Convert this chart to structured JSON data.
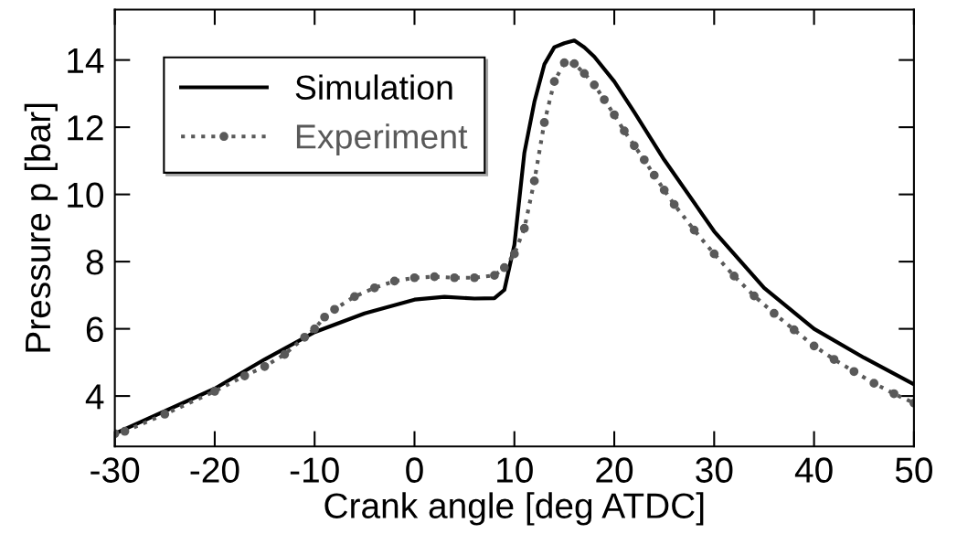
{
  "chart_data": {
    "type": "line",
    "xlabel": "Crank angle [deg ATDC]",
    "ylabel": "Pressure p [bar]",
    "xlim": [
      -30,
      50
    ],
    "xticks": [
      -30,
      -20,
      -10,
      0,
      10,
      20,
      30,
      40,
      50
    ],
    "ylim": [
      2.5,
      15.5
    ],
    "yticks": [
      4,
      6,
      8,
      10,
      12,
      14
    ],
    "grid": false,
    "legend": "top left",
    "series": [
      {
        "name": "Simulation",
        "color": "#000000",
        "line_style": "solid",
        "marker": "none",
        "x": [
          -30,
          -20,
          -15,
          -10,
          -5,
          0,
          3,
          6,
          8,
          9,
          10,
          11,
          12,
          13,
          14,
          15,
          16,
          17,
          18,
          20,
          22,
          25,
          30,
          35,
          40,
          45,
          50
        ],
        "values": [
          2.88,
          4.22,
          5.09,
          5.9,
          6.46,
          6.87,
          6.95,
          6.9,
          6.91,
          7.16,
          8.5,
          11.24,
          12.75,
          13.87,
          14.38,
          14.5,
          14.58,
          14.38,
          14.1,
          13.36,
          12.45,
          11.03,
          8.9,
          7.22,
          6.0,
          5.14,
          4.35
        ]
      },
      {
        "name": "Experiment",
        "color": "#595959",
        "line_style": "dotted",
        "marker": "circle",
        "x": [
          -30,
          -29,
          -25,
          -20,
          -17,
          -15,
          -13,
          -11,
          -10,
          -9,
          -8,
          -6,
          -4,
          -2,
          0,
          2,
          4,
          6,
          8,
          9,
          10,
          11,
          12,
          13,
          14,
          15,
          16,
          17,
          18,
          19,
          20,
          21,
          22,
          23,
          24,
          25,
          26,
          28,
          30,
          32,
          34,
          36,
          38,
          40,
          42,
          44,
          46,
          48,
          50
        ],
        "values": [
          2.88,
          2.95,
          3.46,
          4.14,
          4.6,
          4.88,
          5.24,
          5.75,
          6.0,
          6.35,
          6.58,
          6.96,
          7.22,
          7.42,
          7.52,
          7.55,
          7.52,
          7.52,
          7.59,
          7.82,
          8.23,
          8.99,
          10.4,
          12.14,
          13.36,
          13.92,
          13.89,
          13.6,
          13.26,
          12.82,
          12.37,
          11.89,
          11.45,
          11.03,
          10.57,
          10.13,
          9.7,
          8.94,
          8.23,
          7.57,
          6.98,
          6.46,
          5.97,
          5.49,
          5.09,
          4.73,
          4.38,
          4.07,
          3.79
        ]
      }
    ]
  }
}
